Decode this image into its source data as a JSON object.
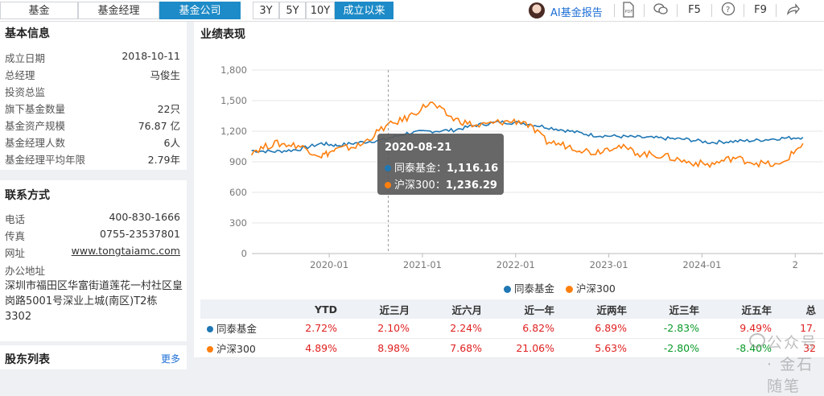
{
  "tabs": [
    "基金",
    "基金经理",
    "基金公司"
  ],
  "active_tab": 2,
  "ranges": [
    "3Y",
    "5Y",
    "10Y",
    "成立以来"
  ],
  "active_range": 3,
  "toolbar": {
    "ai_label": "AI基金报告",
    "pdf": "PDF",
    "f5": "F5",
    "help": "?",
    "f9": "F9"
  },
  "basic": {
    "title": "基本信息",
    "rows": [
      {
        "label": "成立日期",
        "value": "2018-10-11"
      },
      {
        "label": "总经理",
        "value": "马俊生"
      },
      {
        "label": "投资总监",
        "value": ""
      },
      {
        "label": "旗下基金数量",
        "value": "22只"
      },
      {
        "label": "基金资产规模",
        "value": "76.87 亿"
      },
      {
        "label": "基金经理人数",
        "value": "6人"
      },
      {
        "label": "基金经理平均年限",
        "value": "2.79年"
      }
    ]
  },
  "contact": {
    "title": "联系方式",
    "rows": [
      {
        "label": "电话",
        "value": "400-830-1666"
      },
      {
        "label": "传真",
        "value": "0755-23537801"
      },
      {
        "label": "网址",
        "value": "www.tongtaiamc.com"
      }
    ],
    "address_label": "办公地址",
    "address": "深圳市福田区华富街道莲花一村社区皇岗路5001号深业上城(南区)T2栋3302"
  },
  "holdings": {
    "title": "股东列表",
    "more": "更多"
  },
  "perf": {
    "title": "业绩表现"
  },
  "chart_data": {
    "type": "line",
    "y_ticks": [
      0,
      300,
      600,
      900,
      1200,
      1500,
      1800
    ],
    "y_tick_labels": [
      "0",
      "300",
      "600",
      "900",
      "1,200",
      "1,500",
      "1,800"
    ],
    "x_tick_labels": [
      "2020-01",
      "2021-01",
      "2022-01",
      "2023-01",
      "2024-01",
      "2"
    ],
    "ylim": [
      0,
      1800
    ],
    "x": [
      "2019-03",
      "2019-06",
      "2019-09",
      "2019-12",
      "2020-02",
      "2020-05",
      "2020-08",
      "2020-11",
      "2021-02",
      "2021-05",
      "2021-08",
      "2021-11",
      "2022-02",
      "2022-05",
      "2022-08",
      "2022-11",
      "2023-02",
      "2023-05",
      "2023-08",
      "2023-11",
      "2024-02",
      "2024-05",
      "2024-08",
      "2024-11",
      "2025-02"
    ],
    "series": [
      {
        "name": "同泰基金",
        "color": "#1f77b4",
        "values": [
          1010,
          1000,
          1020,
          1080,
          1060,
          1090,
          1116,
          1180,
          1200,
          1210,
          1260,
          1290,
          1280,
          1240,
          1200,
          1160,
          1150,
          1140,
          1130,
          1120,
          1090,
          1100,
          1110,
          1130,
          1140
        ]
      },
      {
        "name": "沪深300",
        "color": "#ff7f0e",
        "values": [
          1000,
          1080,
          1060,
          960,
          1020,
          1060,
          1236,
          1330,
          1480,
          1320,
          1250,
          1290,
          1300,
          1100,
          1050,
          990,
          1060,
          980,
          960,
          900,
          870,
          940,
          890,
          860,
          1080
        ]
      }
    ],
    "tooltip": {
      "date": "2020-08-21",
      "rows": [
        {
          "name": "同泰基金：",
          "value": "1,116.16",
          "color": "#1f77b4"
        },
        {
          "name": "沪深300：",
          "value": "1,236.29",
          "color": "#ff7f0e"
        }
      ]
    },
    "legend": [
      "同泰基金",
      "沪深300"
    ]
  },
  "table": {
    "headers": [
      "",
      "YTD",
      "近三月",
      "近六月",
      "近一年",
      "近两年",
      "近三年",
      "近五年",
      "总"
    ],
    "rows": [
      {
        "name": "同泰基金",
        "color": "#1f77b4",
        "cells": [
          "2.72%",
          "2.10%",
          "2.24%",
          "6.82%",
          "6.89%",
          "-2.83%",
          "9.49%",
          "17."
        ]
      },
      {
        "name": "沪深300",
        "color": "#ff7f0e",
        "cells": [
          "4.89%",
          "8.98%",
          "7.68%",
          "21.06%",
          "5.63%",
          "-2.80%",
          "-8.40%",
          "32"
        ]
      }
    ]
  },
  "watermark": "公众号 · 金石随笔"
}
